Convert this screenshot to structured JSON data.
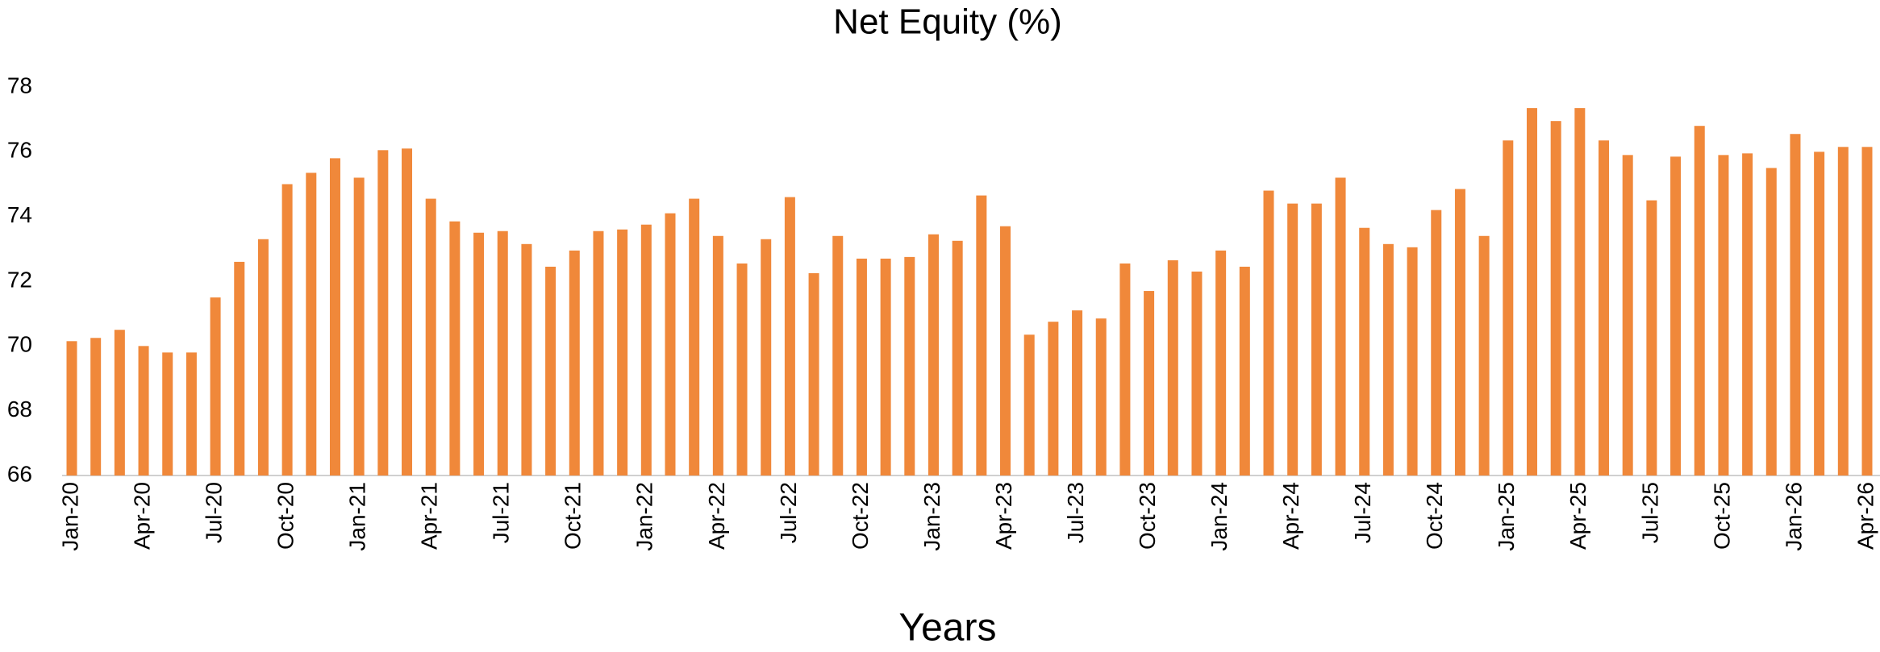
{
  "chart_data": {
    "type": "bar",
    "title": "Net Equity (%)",
    "x_label": "Years",
    "categories": [
      "Jan-20",
      null,
      null,
      "Apr-20",
      null,
      null,
      "Jul-20",
      null,
      null,
      "Oct-20",
      null,
      null,
      "Jan-21",
      null,
      null,
      "Apr-21",
      null,
      null,
      "Jul-21",
      null,
      null,
      "Oct-21",
      null,
      null,
      "Jan-22",
      null,
      null,
      "Apr-22",
      null,
      null,
      "Jul-22",
      null,
      null,
      "Oct-22",
      null,
      null,
      "Jan-23",
      null,
      null,
      "Apr-23",
      null,
      null,
      "Jul-23",
      null,
      null,
      "Oct-23",
      null,
      null,
      "Jan-24",
      null,
      null,
      "Apr-24",
      null,
      null,
      "Jul-24",
      null,
      null,
      "Oct-24",
      null,
      null,
      "Jan-25",
      null,
      null,
      "Apr-25",
      null,
      null,
      "Jul-25",
      null,
      null,
      "Oct-25",
      null,
      null,
      "Jan-26",
      null,
      null,
      "Apr-26"
    ],
    "values": [
      70.15,
      70.25,
      70.5,
      70.0,
      69.8,
      69.8,
      71.5,
      72.6,
      73.3,
      75.0,
      75.35,
      75.8,
      75.2,
      76.05,
      76.1,
      74.55,
      73.85,
      73.5,
      73.55,
      73.15,
      72.45,
      72.95,
      73.55,
      73.6,
      73.75,
      74.1,
      74.55,
      73.4,
      72.55,
      73.3,
      74.6,
      72.25,
      73.4,
      72.7,
      72.7,
      72.75,
      73.45,
      73.25,
      74.65,
      73.7,
      70.35,
      70.75,
      71.1,
      70.85,
      72.55,
      71.7,
      72.65,
      72.3,
      72.95,
      72.45,
      74.8,
      74.4,
      74.4,
      75.2,
      73.65,
      73.15,
      73.05,
      74.2,
      74.85,
      73.4,
      76.35,
      77.35,
      76.95,
      77.35,
      76.35,
      75.9,
      74.5,
      75.85,
      76.8,
      75.9,
      75.95,
      75.5,
      76.55,
      76.0,
      76.15,
      76.15
    ],
    "color": "#f0883a",
    "ylim": [
      66,
      78
    ],
    "yticks": [
      66,
      68,
      70,
      72,
      74,
      76,
      78
    ],
    "grid": false
  }
}
